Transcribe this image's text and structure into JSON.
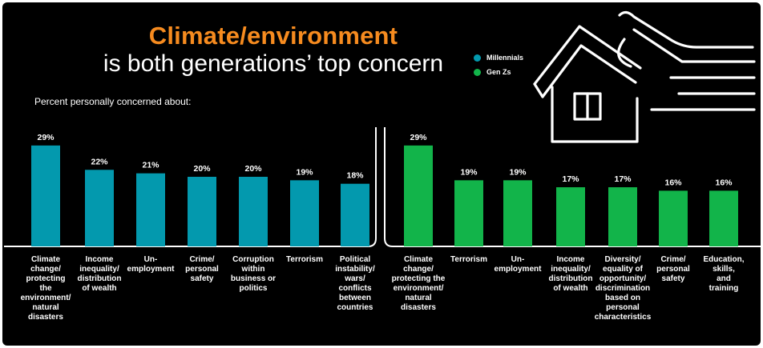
{
  "header": {
    "title_accent": "Climate/environment",
    "title_rest": "is both generations’ top concern",
    "subtitle": "Percent personally concerned about:"
  },
  "legend": [
    {
      "name": "Millennials",
      "color": "#0399AE"
    },
    {
      "name": "Gen Zs",
      "color": "#12B44A"
    }
  ],
  "icon": "house-with-wind-icon",
  "chart_data": [
    {
      "type": "bar",
      "series_name": "Millennials",
      "color": "#0399AE",
      "categories": [
        "Climate change/ protecting the environment/ natural disasters",
        "Income inequality/ distribution of wealth",
        "Un-employment",
        "Crime/ personal safety",
        "Corruption within business or politics",
        "Terrorism",
        "Political instability/ wars/ conflicts between countries"
      ],
      "category_lines": [
        [
          "Climate",
          "change/",
          "protecting",
          "the",
          "environment/",
          "natural",
          "disasters"
        ],
        [
          "Income",
          "inequality/",
          "distribution",
          "of wealth"
        ],
        [
          "Un-",
          "employment"
        ],
        [
          "Crime/",
          "personal",
          "safety"
        ],
        [
          "Corruption",
          "within",
          "business or",
          "politics"
        ],
        [
          "Terrorism"
        ],
        [
          "Political",
          "instability/",
          "wars/",
          "conflicts",
          "between",
          "countries"
        ]
      ],
      "values": [
        29,
        22,
        21,
        20,
        20,
        19,
        18
      ],
      "value_labels": [
        "29%",
        "22%",
        "21%",
        "20%",
        "20%",
        "19%",
        "18%"
      ],
      "unit": "%",
      "ylim": [
        0,
        30
      ]
    },
    {
      "type": "bar",
      "series_name": "Gen Zs",
      "color": "#12B44A",
      "categories": [
        "Climate change/ protecting the environment/ natural disasters",
        "Terrorism",
        "Un-employment",
        "Income inequality/ distribution of wealth",
        "Diversity/ equality of opportunity/ discrimination based on personal characteristics",
        "Crime/ personal safety",
        "Education, skills, and training"
      ],
      "category_lines": [
        [
          "Climate",
          "change/",
          "protecting the",
          "environment/",
          "natural",
          "disasters"
        ],
        [
          "Terrorism"
        ],
        [
          "Un-",
          "employment"
        ],
        [
          "Income",
          "inequality/",
          "distribution",
          "of wealth"
        ],
        [
          "Diversity/",
          "equality of",
          "opportunity/",
          "discrimination",
          "based on",
          "personal",
          "characteristics"
        ],
        [
          "Crime/",
          "personal",
          "safety"
        ],
        [
          "Education,",
          "skills,",
          "and",
          "training"
        ]
      ],
      "values": [
        29,
        19,
        19,
        17,
        17,
        16,
        16
      ],
      "value_labels": [
        "29%",
        "19%",
        "19%",
        "17%",
        "17%",
        "16%",
        "16%"
      ],
      "unit": "%",
      "ylim": [
        0,
        30
      ]
    }
  ]
}
